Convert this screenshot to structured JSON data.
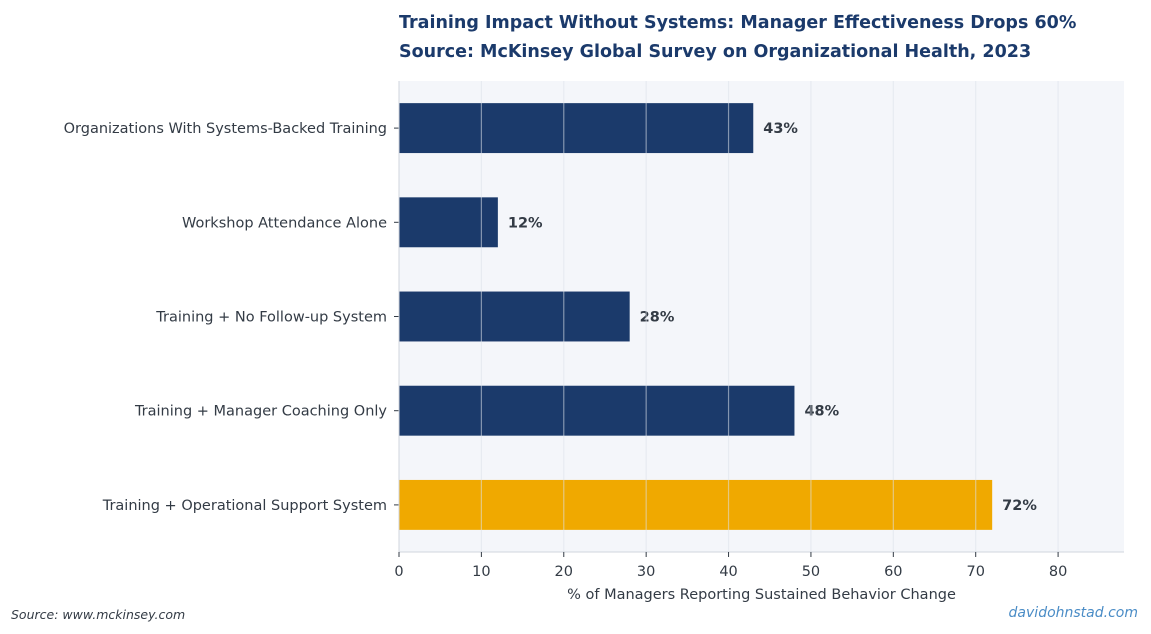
{
  "titles": {
    "line1": "Training Impact Without Systems: Manager Effectiveness Drops 60%",
    "line2": "Source: McKinsey Global Survey on Organizational Health, 2023"
  },
  "footer": {
    "source": "Source: www.mckinsey.com",
    "credit": "davidohnstad.com"
  },
  "colors": {
    "bar": "#1b3a6b",
    "highlight": "#f0a900",
    "plot_background": "#f4f6fa",
    "grid": "#dde2ea",
    "text": "#333b45"
  },
  "chart_data": {
    "type": "bar",
    "orientation": "horizontal",
    "categories": [
      "Organizations With Systems-Backed Training",
      "Workshop Attendance Alone",
      "Training + No Follow-up System",
      "Training + Manager Coaching Only",
      "Training + Operational Support System"
    ],
    "values": [
      43,
      12,
      28,
      48,
      72
    ],
    "value_labels": [
      "43%",
      "12%",
      "28%",
      "48%",
      "72%"
    ],
    "highlight_index": 4,
    "xlabel": "% of Managers Reporting Sustained Behavior Change",
    "ylabel": "",
    "xlim": [
      0,
      88
    ],
    "xticks": [
      0,
      10,
      20,
      30,
      40,
      50,
      60,
      70,
      80
    ],
    "grid": "vertical"
  }
}
